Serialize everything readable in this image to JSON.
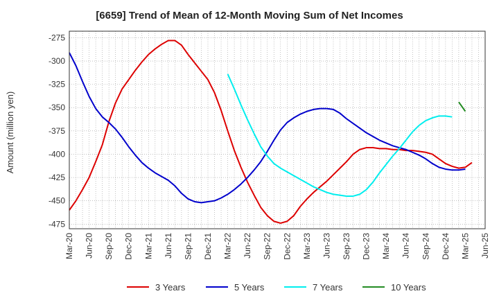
{
  "chart_data": {
    "type": "line",
    "title": "[6659]  Trend of Mean of 12-Month Moving Sum of Net Incomes",
    "ylabel": "Amount (million yen)",
    "xlabel": "",
    "ylim": [
      -480,
      -268
    ],
    "yticks": [
      -275,
      -300,
      -325,
      -350,
      -375,
      -400,
      -425,
      -450,
      -475
    ],
    "xtick_labels": [
      "Mar-20",
      "Jun-20",
      "Sep-20",
      "Dec-20",
      "Mar-21",
      "Jun-21",
      "Sep-21",
      "Dec-21",
      "Mar-22",
      "Jun-22",
      "Sep-22",
      "Dec-22",
      "Mar-23",
      "Jun-23",
      "Sep-23",
      "Dec-23",
      "Mar-24",
      "Jun-24",
      "Sep-24",
      "Dec-24",
      "Mar-25",
      "Jun-25"
    ],
    "grid": true,
    "legend_position": "bottom",
    "series": [
      {
        "name": "3 Years",
        "color": "#dd0000",
        "points": [
          [
            "Mar-20",
            -460
          ],
          [
            "Apr-20",
            -450
          ],
          [
            "May-20",
            -438
          ],
          [
            "Jun-20",
            -425
          ],
          [
            "Jul-20",
            -408
          ],
          [
            "Aug-20",
            -390
          ],
          [
            "Sep-20",
            -365
          ],
          [
            "Oct-20",
            -345
          ],
          [
            "Nov-20",
            -330
          ],
          [
            "Dec-20",
            -320
          ],
          [
            "Jan-21",
            -310
          ],
          [
            "Feb-21",
            -301
          ],
          [
            "Mar-21",
            -293
          ],
          [
            "Apr-21",
            -287
          ],
          [
            "May-21",
            -282
          ],
          [
            "Jun-21",
            -278
          ],
          [
            "Jul-21",
            -278
          ],
          [
            "Aug-21",
            -283
          ],
          [
            "Sep-21",
            -293
          ],
          [
            "Oct-21",
            -302
          ],
          [
            "Nov-21",
            -311
          ],
          [
            "Dec-21",
            -320
          ],
          [
            "Jan-22",
            -334
          ],
          [
            "Feb-22",
            -353
          ],
          [
            "Mar-22",
            -375
          ],
          [
            "Apr-22",
            -396
          ],
          [
            "May-22",
            -414
          ],
          [
            "Jun-22",
            -430
          ],
          [
            "Jul-22",
            -444
          ],
          [
            "Aug-22",
            -457
          ],
          [
            "Sep-22",
            -466
          ],
          [
            "Oct-22",
            -472
          ],
          [
            "Nov-22",
            -474
          ],
          [
            "Dec-22",
            -472
          ],
          [
            "Jan-23",
            -466
          ],
          [
            "Feb-23",
            -456
          ],
          [
            "Mar-23",
            -448
          ],
          [
            "Apr-23",
            -441
          ],
          [
            "May-23",
            -435
          ],
          [
            "Jun-23",
            -429
          ],
          [
            "Jul-23",
            -422
          ],
          [
            "Aug-23",
            -415
          ],
          [
            "Sep-23",
            -408
          ],
          [
            "Oct-23",
            -400
          ],
          [
            "Nov-23",
            -395
          ],
          [
            "Dec-23",
            -393
          ],
          [
            "Jan-24",
            -393
          ],
          [
            "Feb-24",
            -394
          ],
          [
            "Mar-24",
            -394
          ],
          [
            "Apr-24",
            -395
          ],
          [
            "May-24",
            -395
          ],
          [
            "Jun-24",
            -396
          ],
          [
            "Jul-24",
            -396
          ],
          [
            "Aug-24",
            -397
          ],
          [
            "Sep-24",
            -398
          ],
          [
            "Oct-24",
            -400
          ],
          [
            "Nov-24",
            -405
          ],
          [
            "Dec-24",
            -410
          ],
          [
            "Jan-25",
            -413
          ],
          [
            "Feb-25",
            -415
          ],
          [
            "Mar-25",
            -414
          ],
          [
            "Apr-25",
            -409
          ]
        ]
      },
      {
        "name": "5 Years",
        "color": "#0000cc",
        "points": [
          [
            "Mar-20",
            -291
          ],
          [
            "Apr-20",
            -305
          ],
          [
            "May-20",
            -322
          ],
          [
            "Jun-20",
            -338
          ],
          [
            "Jul-20",
            -351
          ],
          [
            "Aug-20",
            -360
          ],
          [
            "Sep-20",
            -366
          ],
          [
            "Oct-20",
            -373
          ],
          [
            "Nov-20",
            -382
          ],
          [
            "Dec-20",
            -392
          ],
          [
            "Jan-21",
            -401
          ],
          [
            "Feb-21",
            -409
          ],
          [
            "Mar-21",
            -415
          ],
          [
            "Apr-21",
            -420
          ],
          [
            "May-21",
            -424
          ],
          [
            "Jun-21",
            -428
          ],
          [
            "Jul-21",
            -434
          ],
          [
            "Aug-21",
            -442
          ],
          [
            "Sep-21",
            -448
          ],
          [
            "Oct-21",
            -451
          ],
          [
            "Nov-21",
            -452
          ],
          [
            "Dec-21",
            -451
          ],
          [
            "Jan-22",
            -450
          ],
          [
            "Feb-22",
            -447
          ],
          [
            "Mar-22",
            -443
          ],
          [
            "Apr-22",
            -438
          ],
          [
            "May-22",
            -432
          ],
          [
            "Jun-22",
            -425
          ],
          [
            "Jul-22",
            -417
          ],
          [
            "Aug-22",
            -408
          ],
          [
            "Sep-22",
            -397
          ],
          [
            "Oct-22",
            -385
          ],
          [
            "Nov-22",
            -374
          ],
          [
            "Dec-22",
            -366
          ],
          [
            "Jan-23",
            -361
          ],
          [
            "Feb-23",
            -357
          ],
          [
            "Mar-23",
            -354
          ],
          [
            "Apr-23",
            -352
          ],
          [
            "May-23",
            -351
          ],
          [
            "Jun-23",
            -351
          ],
          [
            "Jul-23",
            -352
          ],
          [
            "Aug-23",
            -356
          ],
          [
            "Sep-23",
            -362
          ],
          [
            "Oct-23",
            -367
          ],
          [
            "Nov-23",
            -372
          ],
          [
            "Dec-23",
            -377
          ],
          [
            "Jan-24",
            -381
          ],
          [
            "Feb-24",
            -385
          ],
          [
            "Mar-24",
            -388
          ],
          [
            "Apr-24",
            -391
          ],
          [
            "May-24",
            -393
          ],
          [
            "Jun-24",
            -395
          ],
          [
            "Jul-24",
            -398
          ],
          [
            "Aug-24",
            -401
          ],
          [
            "Sep-24",
            -405
          ],
          [
            "Oct-24",
            -410
          ],
          [
            "Nov-24",
            -414
          ],
          [
            "Dec-24",
            -416
          ],
          [
            "Jan-25",
            -417
          ],
          [
            "Feb-25",
            -417
          ],
          [
            "Mar-25",
            -416
          ]
        ]
      },
      {
        "name": "7 Years",
        "color": "#00eeee",
        "points": [
          [
            "Mar-22",
            -314
          ],
          [
            "Apr-22",
            -330
          ],
          [
            "May-22",
            -347
          ],
          [
            "Jun-22",
            -363
          ],
          [
            "Jul-22",
            -378
          ],
          [
            "Aug-22",
            -392
          ],
          [
            "Sep-22",
            -402
          ],
          [
            "Oct-22",
            -410
          ],
          [
            "Nov-22",
            -415
          ],
          [
            "Dec-22",
            -419
          ],
          [
            "Jan-23",
            -423
          ],
          [
            "Feb-23",
            -427
          ],
          [
            "Mar-23",
            -431
          ],
          [
            "Apr-23",
            -435
          ],
          [
            "May-23",
            -438
          ],
          [
            "Jun-23",
            -441
          ],
          [
            "Jul-23",
            -443
          ],
          [
            "Aug-23",
            -444
          ],
          [
            "Sep-23",
            -445
          ],
          [
            "Oct-23",
            -445
          ],
          [
            "Nov-23",
            -443
          ],
          [
            "Dec-23",
            -438
          ],
          [
            "Jan-24",
            -430
          ],
          [
            "Feb-24",
            -420
          ],
          [
            "Mar-24",
            -411
          ],
          [
            "Apr-24",
            -402
          ],
          [
            "May-24",
            -394
          ],
          [
            "Jun-24",
            -385
          ],
          [
            "Jul-24",
            -376
          ],
          [
            "Aug-24",
            -369
          ],
          [
            "Sep-24",
            -364
          ],
          [
            "Oct-24",
            -361
          ],
          [
            "Nov-24",
            -359
          ],
          [
            "Dec-24",
            -359
          ],
          [
            "Jan-25",
            -360
          ]
        ]
      },
      {
        "name": "10 Years",
        "color": "#228B22",
        "points": [
          [
            "Feb-25",
            -344
          ],
          [
            "Mar-25",
            -354
          ]
        ]
      }
    ]
  }
}
